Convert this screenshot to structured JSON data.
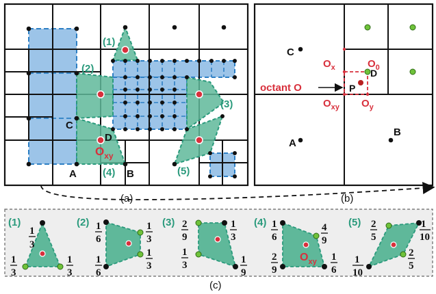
{
  "colors": {
    "teal": "#2a9a7c",
    "teal_fill": "#5fb89a",
    "blue_fill": "#9cc4e8",
    "blue_edge": "#2d7fc4",
    "red": "#d8303c",
    "green_node": "#6fc23a"
  },
  "panel_a": {
    "caption": "(a)",
    "regions": [
      "(1)",
      "(2)",
      "(3)",
      "(4)",
      "(5)"
    ],
    "labels": {
      "a": "A",
      "b": "B",
      "c": "C",
      "d": "D",
      "o": "O",
      "o_sub": "xy"
    }
  },
  "panel_b": {
    "caption": "(b)",
    "labels": {
      "a": "A",
      "b": "B",
      "c": "C",
      "d": "D",
      "p": "P"
    },
    "octant_label": "octant O",
    "o": "O",
    "o_subs": {
      "x": "x",
      "xy": "xy",
      "y": "y",
      "zero": "0"
    }
  },
  "panel_c": {
    "caption": "(c)",
    "items": [
      {
        "tag": "(1)",
        "fracs": [
          {
            "n": "1",
            "d": "3"
          },
          {
            "n": "1",
            "d": "3"
          },
          {
            "n": "1",
            "d": "3"
          }
        ]
      },
      {
        "tag": "(2)",
        "fracs": [
          {
            "n": "1",
            "d": "6"
          },
          {
            "n": "1",
            "d": "3"
          },
          {
            "n": "1",
            "d": "3"
          },
          {
            "n": "1",
            "d": "6"
          }
        ]
      },
      {
        "tag": "(3)",
        "fracs": [
          {
            "n": "2",
            "d": "9"
          },
          {
            "n": "1",
            "d": "3"
          },
          {
            "n": "1",
            "d": "3"
          },
          {
            "n": "1",
            "d": "9"
          }
        ]
      },
      {
        "tag": "(4)",
        "fracs": [
          {
            "n": "1",
            "d": "6"
          },
          {
            "n": "4",
            "d": "9"
          },
          {
            "n": "2",
            "d": "9"
          },
          {
            "n": "1",
            "d": "6"
          }
        ],
        "o": "O",
        "o_sub": "xy"
      },
      {
        "tag": "(5)",
        "fracs": [
          {
            "n": "2",
            "d": "5"
          },
          {
            "n": "1",
            "d": "10"
          },
          {
            "n": "1",
            "d": "10"
          },
          {
            "n": "2",
            "d": "5"
          }
        ]
      }
    ]
  }
}
